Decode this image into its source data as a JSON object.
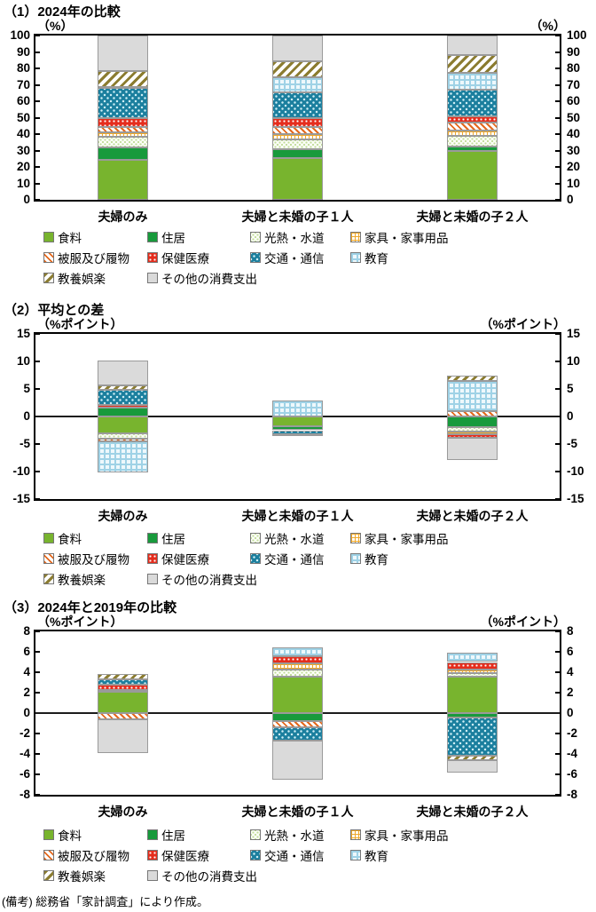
{
  "page": {
    "note": "(備考) 総務省「家計調査」により作成。"
  },
  "palette": {
    "食料": "#78b42e",
    "住居": "#189a3c",
    "光熱・水道": "#c2dc9a",
    "家具・家事用品": "#efa82a",
    "被服及び履物": "#e4681c",
    "保健医療": "#e52d1d",
    "交通・通信": "#1b7f9e",
    "教育": "#9fd2e6",
    "教養娯楽": "#8b7c30",
    "その他の消費支出": "#dadada"
  },
  "chart_data": [
    {
      "type": "bar",
      "stacked": true,
      "title": "（1）2024年の比較",
      "unit_left": "（%）",
      "unit_right": "（%）",
      "ylim": [
        0,
        100
      ],
      "ytick_step": 10,
      "grid": false,
      "legend_position": "bottom",
      "categories": [
        "夫婦のみ",
        "夫婦と未婚の子１人",
        "夫婦と未婚の子２人"
      ],
      "series": [
        {
          "name": "食料",
          "values": [
            24.5,
            25.5,
            29.5
          ]
        },
        {
          "name": "住居",
          "values": [
            7.5,
            5.5,
            3
          ]
        },
        {
          "name": "光熱・水道",
          "values": [
            6.5,
            6,
            6.5
          ]
        },
        {
          "name": "家具・家事用品",
          "values": [
            2.5,
            3,
            3
          ]
        },
        {
          "name": "被服及び履物",
          "values": [
            3.5,
            4.5,
            5
          ]
        },
        {
          "name": "保健医療",
          "values": [
            5,
            5,
            4
          ]
        },
        {
          "name": "交通・通信",
          "values": [
            18.5,
            16,
            16
          ]
        },
        {
          "name": "教育",
          "values": [
            0.5,
            9,
            10.5
          ]
        },
        {
          "name": "教養娯楽",
          "values": [
            10,
            10,
            10.5
          ]
        },
        {
          "name": "その他の消費支出",
          "values": [
            21.5,
            15.5,
            12
          ]
        }
      ]
    },
    {
      "type": "bar",
      "stacked": true,
      "title": "（2）平均との差",
      "unit_left": "（%ポイント）",
      "unit_right": "（%ポイント）",
      "ylim": [
        -15,
        15
      ],
      "ytick_step": 5,
      "grid": false,
      "legend_position": "bottom",
      "categories": [
        "夫婦のみ",
        "夫婦と未婚の子１人",
        "夫婦と未婚の子２人"
      ],
      "series": [
        {
          "name": "食料",
          "values": [
            -3.0,
            -1.7,
            0
          ]
        },
        {
          "name": "住居",
          "values": [
            1.6,
            -0.8,
            -1.9
          ]
        },
        {
          "name": "光熱・水道",
          "values": [
            -1.0,
            0,
            -0.8
          ]
        },
        {
          "name": "家具・家事用品",
          "values": [
            0,
            0,
            -0.6
          ]
        },
        {
          "name": "被服及び履物",
          "values": [
            -0.5,
            0,
            0.9
          ]
        },
        {
          "name": "保健医療",
          "values": [
            0.5,
            0,
            -0.6
          ]
        },
        {
          "name": "交通・通信",
          "values": [
            2.7,
            -0.7,
            0
          ]
        },
        {
          "name": "教育",
          "values": [
            -5.6,
            2.9,
            5.6
          ]
        },
        {
          "name": "教養娯楽",
          "values": [
            0.8,
            -0.4,
            0.9
          ]
        },
        {
          "name": "その他の消費支出",
          "values": [
            4.5,
            0,
            -4.0
          ]
        }
      ]
    },
    {
      "type": "bar",
      "stacked": true,
      "title": "（3）2024年と2019年の比較",
      "unit_left": "（%ポイント）",
      "unit_right": "（%ポイント）",
      "ylim": [
        -8,
        8
      ],
      "ytick_step": 2,
      "grid": false,
      "legend_position": "bottom",
      "categories": [
        "夫婦のみ",
        "夫婦と未婚の子１人",
        "夫婦と未婚の子２人"
      ],
      "series": [
        {
          "name": "食料",
          "values": [
            2.1,
            3.6,
            3.6
          ]
        },
        {
          "name": "住居",
          "values": [
            0,
            -0.8,
            -0.4
          ]
        },
        {
          "name": "光熱・水道",
          "values": [
            0.2,
            0.7,
            0.3
          ]
        },
        {
          "name": "家具・家事用品",
          "values": [
            0,
            0.6,
            0.4
          ]
        },
        {
          "name": "被服及び履物",
          "values": [
            -0.6,
            -0.6,
            0
          ]
        },
        {
          "name": "保健医療",
          "values": [
            0.5,
            0.7,
            0.7
          ]
        },
        {
          "name": "交通・通信",
          "values": [
            0.5,
            -1.3,
            -3.8
          ]
        },
        {
          "name": "教育",
          "values": [
            0,
            0.8,
            0.9
          ]
        },
        {
          "name": "教養娯楽",
          "values": [
            0.5,
            0,
            -0.4
          ]
        },
        {
          "name": "その他の消費支出",
          "values": [
            -3.3,
            -3.8,
            -1.2
          ]
        }
      ]
    }
  ]
}
